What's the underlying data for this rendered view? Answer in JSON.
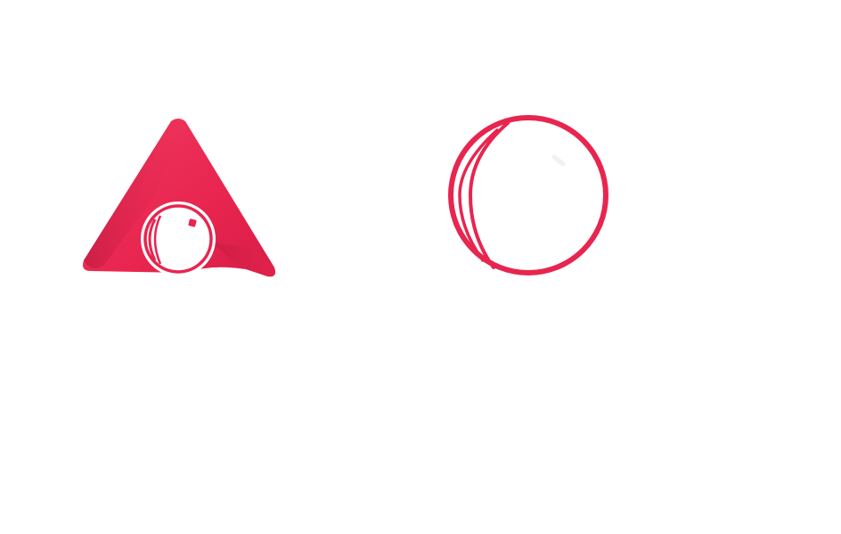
{
  "colors": {
    "brand": "#E8254F",
    "brand_dark": "#C41A3E",
    "brand_light": "#F03A5F",
    "background": "#FFFFFF"
  },
  "icons": {
    "a_logo": "triangle-a-with-lens-icon",
    "ring_logo": "lens-ring-icon"
  }
}
